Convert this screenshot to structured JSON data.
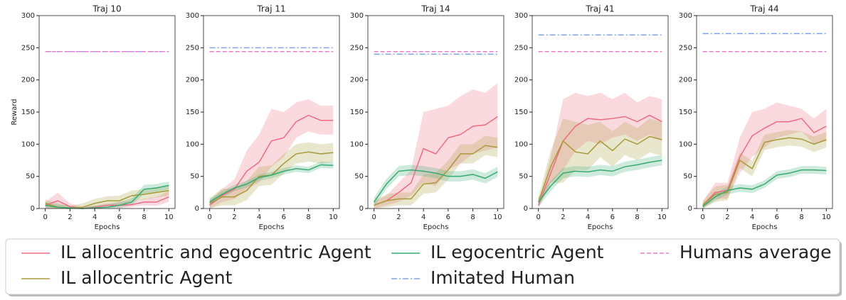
{
  "chart_data": [
    {
      "type": "line",
      "title": "Traj 10",
      "xlabel": "Epochs",
      "ylabel": "Reward",
      "x": [
        0,
        1,
        2,
        3,
        4,
        5,
        6,
        7,
        8,
        9,
        10
      ],
      "xlim": [
        -0.5,
        10.5
      ],
      "xticks": [
        0,
        2,
        4,
        6,
        8,
        10
      ],
      "ylim": [
        0,
        300
      ],
      "yticks": [
        0,
        50,
        100,
        150,
        200,
        250,
        300
      ],
      "series": [
        {
          "name": "IL allocentric and egocentric Agent",
          "color": "#ee6b80",
          "linestyle": "solid",
          "values": [
            5,
            12,
            3,
            0,
            2,
            5,
            5,
            6,
            10,
            10,
            18
          ],
          "lower": [
            0,
            0,
            0,
            0,
            0,
            1,
            1,
            2,
            5,
            4,
            10
          ],
          "upper": [
            10,
            25,
            8,
            3,
            5,
            8,
            10,
            12,
            15,
            18,
            28
          ]
        },
        {
          "name": "IL allocentric Agent",
          "color": "#a89a3a",
          "linestyle": "solid",
          "values": [
            8,
            2,
            0,
            2,
            8,
            12,
            12,
            20,
            22,
            25,
            28
          ],
          "lower": [
            2,
            0,
            0,
            0,
            2,
            5,
            5,
            12,
            14,
            17,
            20
          ],
          "upper": [
            14,
            8,
            4,
            8,
            15,
            19,
            20,
            28,
            30,
            33,
            36
          ]
        },
        {
          "name": "IL egocentric Agent",
          "color": "#3aaa72",
          "linestyle": "solid",
          "values": [
            5,
            2,
            1,
            0,
            1,
            2,
            5,
            10,
            30,
            32,
            36
          ],
          "lower": [
            1,
            0,
            0,
            0,
            0,
            0,
            1,
            5,
            23,
            26,
            30
          ],
          "upper": [
            10,
            6,
            4,
            2,
            4,
            6,
            10,
            16,
            37,
            38,
            42
          ]
        },
        {
          "name": "Imitated Human",
          "color": "#7da2e8",
          "linestyle": "dashdot",
          "x": [
            0,
            10
          ],
          "values": [
            244,
            244
          ]
        },
        {
          "name": "Humans average",
          "color": "#e87dc8",
          "linestyle": "dashed",
          "x": [
            0,
            10
          ],
          "values": [
            244,
            244
          ]
        }
      ]
    },
    {
      "type": "line",
      "title": "Traj 11",
      "xlabel": "Epochs",
      "x": [
        0,
        1,
        2,
        3,
        4,
        5,
        6,
        7,
        8,
        9,
        10
      ],
      "xlim": [
        -0.5,
        10.5
      ],
      "xticks": [
        0,
        2,
        4,
        6,
        8,
        10
      ],
      "ylim": [
        0,
        300
      ],
      "yticks": [
        0,
        50,
        100,
        150,
        200,
        250,
        300
      ],
      "series": [
        {
          "name": "IL allocentric and egocentric Agent",
          "color": "#ee6b80",
          "linestyle": "solid",
          "values": [
            5,
            20,
            30,
            58,
            72,
            105,
            110,
            135,
            145,
            137,
            137
          ],
          "lower": [
            0,
            10,
            15,
            30,
            40,
            65,
            80,
            110,
            120,
            115,
            115
          ],
          "upper": [
            12,
            30,
            45,
            90,
            115,
            155,
            150,
            165,
            170,
            160,
            160
          ]
        },
        {
          "name": "IL allocentric Agent",
          "color": "#a89a3a",
          "linestyle": "solid",
          "values": [
            8,
            18,
            18,
            28,
            50,
            52,
            70,
            85,
            88,
            85,
            87
          ],
          "lower": [
            0,
            5,
            5,
            13,
            35,
            37,
            55,
            70,
            73,
            70,
            72
          ],
          "upper": [
            16,
            31,
            31,
            43,
            65,
            67,
            85,
            100,
            103,
            100,
            102
          ]
        },
        {
          "name": "IL egocentric Agent",
          "color": "#3aaa72",
          "linestyle": "solid",
          "values": [
            10,
            22,
            32,
            38,
            48,
            52,
            58,
            62,
            60,
            68,
            67
          ],
          "lower": [
            5,
            17,
            27,
            33,
            43,
            47,
            53,
            57,
            55,
            63,
            62
          ],
          "upper": [
            15,
            27,
            37,
            43,
            53,
            57,
            63,
            67,
            65,
            73,
            72
          ]
        },
        {
          "name": "Imitated Human",
          "color": "#7da2e8",
          "linestyle": "dashdot",
          "x": [
            0,
            10
          ],
          "values": [
            250,
            250
          ]
        },
        {
          "name": "Humans average",
          "color": "#e87dc8",
          "linestyle": "dashed",
          "x": [
            0,
            10
          ],
          "values": [
            244,
            244
          ]
        }
      ]
    },
    {
      "type": "line",
      "title": "Traj 14",
      "xlabel": "Epochs",
      "x": [
        0,
        1,
        2,
        3,
        4,
        5,
        6,
        7,
        8,
        9,
        10
      ],
      "xlim": [
        -0.5,
        10.5
      ],
      "xticks": [
        0,
        2,
        4,
        6,
        8,
        10
      ],
      "ylim": [
        0,
        300
      ],
      "yticks": [
        0,
        50,
        100,
        150,
        200,
        250,
        300
      ],
      "series": [
        {
          "name": "IL allocentric and egocentric Agent",
          "color": "#ee6b80",
          "linestyle": "solid",
          "values": [
            5,
            12,
            25,
            40,
            93,
            85,
            110,
            115,
            128,
            130,
            143
          ],
          "lower": [
            0,
            5,
            10,
            20,
            40,
            35,
            60,
            70,
            85,
            90,
            95
          ],
          "upper": [
            10,
            20,
            40,
            60,
            150,
            155,
            160,
            175,
            185,
            180,
            195
          ]
        },
        {
          "name": "IL allocentric Agent",
          "color": "#a89a3a",
          "linestyle": "solid",
          "values": [
            5,
            12,
            15,
            15,
            38,
            40,
            60,
            85,
            85,
            98,
            95
          ],
          "lower": [
            0,
            2,
            5,
            5,
            23,
            25,
            45,
            70,
            70,
            83,
            80
          ],
          "upper": [
            12,
            22,
            25,
            25,
            53,
            55,
            75,
            100,
            100,
            113,
            110
          ]
        },
        {
          "name": "IL egocentric Agent",
          "color": "#3aaa72",
          "linestyle": "solid",
          "values": [
            10,
            38,
            58,
            60,
            58,
            55,
            50,
            50,
            53,
            47,
            57
          ],
          "lower": [
            3,
            30,
            50,
            52,
            50,
            47,
            42,
            42,
            45,
            39,
            49
          ],
          "upper": [
            17,
            46,
            66,
            68,
            66,
            63,
            58,
            58,
            61,
            55,
            65
          ]
        },
        {
          "name": "Imitated Human",
          "color": "#7da2e8",
          "linestyle": "dashdot",
          "x": [
            0,
            10
          ],
          "values": [
            240,
            240
          ]
        },
        {
          "name": "Humans average",
          "color": "#e87dc8",
          "linestyle": "dashed",
          "x": [
            0,
            10
          ],
          "values": [
            244,
            244
          ]
        }
      ]
    },
    {
      "type": "line",
      "title": "Traj 41",
      "xlabel": "Epochs",
      "x": [
        0,
        1,
        2,
        3,
        4,
        5,
        6,
        7,
        8,
        9,
        10
      ],
      "xlim": [
        -0.5,
        10.5
      ],
      "xticks": [
        0,
        2,
        4,
        6,
        8,
        10
      ],
      "ylim": [
        0,
        300
      ],
      "yticks": [
        0,
        50,
        100,
        150,
        200,
        250,
        300
      ],
      "series": [
        {
          "name": "IL allocentric and egocentric Agent",
          "color": "#ee6b80",
          "linestyle": "solid",
          "values": [
            5,
            55,
            105,
            128,
            140,
            138,
            140,
            143,
            135,
            145,
            135
          ],
          "lower": [
            0,
            40,
            60,
            90,
            105,
            100,
            110,
            115,
            105,
            115,
            105
          ],
          "upper": [
            10,
            80,
            170,
            180,
            175,
            180,
            170,
            180,
            165,
            175,
            170
          ]
        },
        {
          "name": "IL allocentric Agent",
          "color": "#a89a3a",
          "linestyle": "solid",
          "values": [
            10,
            65,
            105,
            88,
            85,
            105,
            90,
            108,
            100,
            112,
            107
          ],
          "lower": [
            2,
            40,
            40,
            60,
            60,
            80,
            65,
            83,
            75,
            87,
            82
          ],
          "upper": [
            18,
            90,
            140,
            135,
            130,
            135,
            120,
            135,
            125,
            140,
            135
          ]
        },
        {
          "name": "IL egocentric Agent",
          "color": "#3aaa72",
          "linestyle": "solid",
          "values": [
            10,
            35,
            55,
            58,
            57,
            60,
            58,
            65,
            68,
            72,
            75
          ],
          "lower": [
            3,
            27,
            47,
            50,
            49,
            52,
            50,
            57,
            60,
            64,
            67
          ],
          "upper": [
            17,
            43,
            63,
            66,
            65,
            68,
            66,
            73,
            76,
            80,
            83
          ]
        },
        {
          "name": "Imitated Human",
          "color": "#7da2e8",
          "linestyle": "dashdot",
          "x": [
            0,
            10
          ],
          "values": [
            270,
            270
          ]
        },
        {
          "name": "Humans average",
          "color": "#e87dc8",
          "linestyle": "dashed",
          "x": [
            0,
            10
          ],
          "values": [
            244,
            244
          ]
        }
      ]
    },
    {
      "type": "line",
      "title": "Traj 44",
      "xlabel": "Epochs",
      "x": [
        0,
        1,
        2,
        3,
        4,
        5,
        6,
        7,
        8,
        9,
        10
      ],
      "xlim": [
        -0.5,
        10.5
      ],
      "xticks": [
        0,
        2,
        4,
        6,
        8,
        10
      ],
      "ylim": [
        0,
        300
      ],
      "yticks": [
        0,
        50,
        100,
        150,
        200,
        250,
        300
      ],
      "series": [
        {
          "name": "IL allocentric and egocentric Agent",
          "color": "#ee6b80",
          "linestyle": "solid",
          "values": [
            5,
            25,
            28,
            80,
            113,
            125,
            135,
            135,
            140,
            118,
            128
          ],
          "lower": [
            0,
            15,
            15,
            55,
            80,
            95,
            110,
            115,
            120,
            100,
            105
          ],
          "upper": [
            10,
            40,
            40,
            110,
            150,
            155,
            165,
            160,
            155,
            140,
            155
          ]
        },
        {
          "name": "IL allocentric Agent",
          "color": "#a89a3a",
          "linestyle": "solid",
          "values": [
            5,
            22,
            25,
            75,
            62,
            103,
            107,
            110,
            108,
            100,
            107
          ],
          "lower": [
            0,
            10,
            13,
            63,
            50,
            91,
            95,
            98,
            96,
            88,
            95
          ],
          "upper": [
            12,
            34,
            37,
            87,
            74,
            115,
            119,
            122,
            120,
            112,
            119
          ]
        },
        {
          "name": "IL egocentric Agent",
          "color": "#3aaa72",
          "linestyle": "solid",
          "values": [
            3,
            18,
            28,
            32,
            30,
            38,
            52,
            55,
            60,
            60,
            59
          ],
          "lower": [
            0,
            12,
            22,
            26,
            24,
            32,
            46,
            49,
            54,
            54,
            53
          ],
          "upper": [
            8,
            24,
            34,
            38,
            36,
            44,
            58,
            61,
            66,
            66,
            65
          ]
        },
        {
          "name": "Imitated Human",
          "color": "#7da2e8",
          "linestyle": "dashdot",
          "x": [
            0,
            10
          ],
          "values": [
            272,
            272
          ]
        },
        {
          "name": "Humans average",
          "color": "#e87dc8",
          "linestyle": "dashed",
          "x": [
            0,
            10
          ],
          "values": [
            244,
            244
          ]
        }
      ]
    }
  ]
}
